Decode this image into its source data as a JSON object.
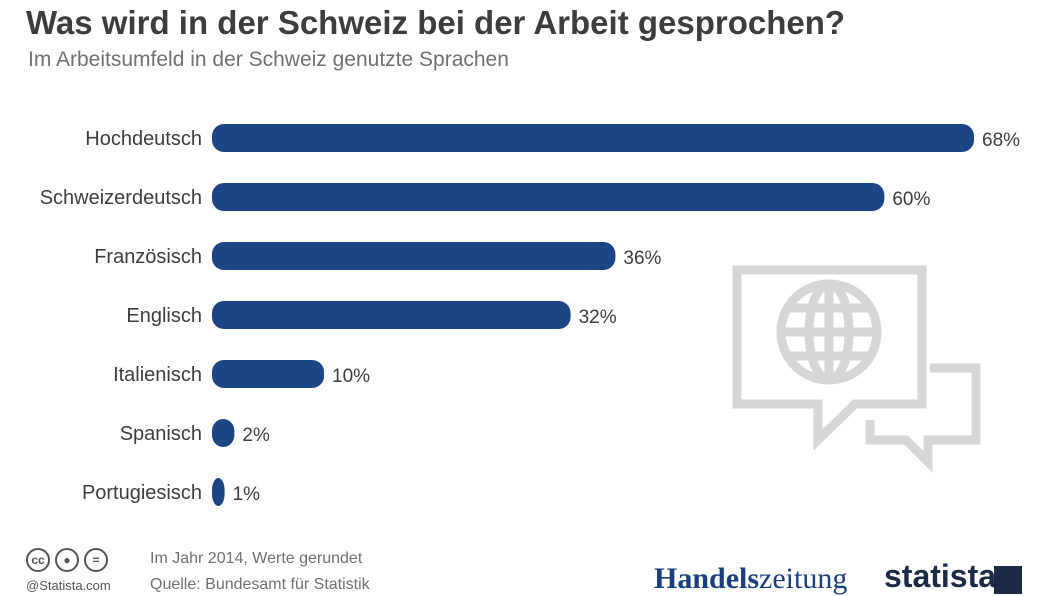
{
  "header": {
    "title": "Was wird in der Schweiz bei der Arbeit gesprochen?",
    "subtitle": "Im Arbeitsumfeld in der Schweiz genutzte Sprachen"
  },
  "chart_data": {
    "type": "bar",
    "orientation": "horizontal",
    "title": "Was wird in der Schweiz bei der Arbeit gesprochen?",
    "subtitle": "Im Arbeitsumfeld in der Schweiz genutzte Sprachen",
    "categories": [
      "Hochdeutsch",
      "Schweizerdeutsch",
      "Französisch",
      "Englisch",
      "Italienisch",
      "Spanisch",
      "Portugiesisch"
    ],
    "values": [
      68,
      60,
      36,
      32,
      10,
      2,
      1
    ],
    "value_labels": [
      "68%",
      "60%",
      "36%",
      "32%",
      "10%",
      "2%",
      "1%"
    ],
    "unit": "%",
    "xlim": [
      0,
      68
    ],
    "grid": false,
    "legend": "none",
    "bar_color": "#1b4585"
  },
  "footer": {
    "note_year": "Im Jahr 2014, Werte gerundet",
    "note_source": "Quelle: Bundesamt für Statistik",
    "copyright": "@Statista.com",
    "cc_icons": [
      "cc-icon",
      "by-icon",
      "nd-icon"
    ],
    "brand_hz_bold": "Handels",
    "brand_hz_light": "zeitung",
    "brand_statista": "statista"
  },
  "colors": {
    "title": "#3d3d3d",
    "subtitle": "#707070",
    "bar": "#1b4585",
    "decoration": "#d6d6d6"
  }
}
